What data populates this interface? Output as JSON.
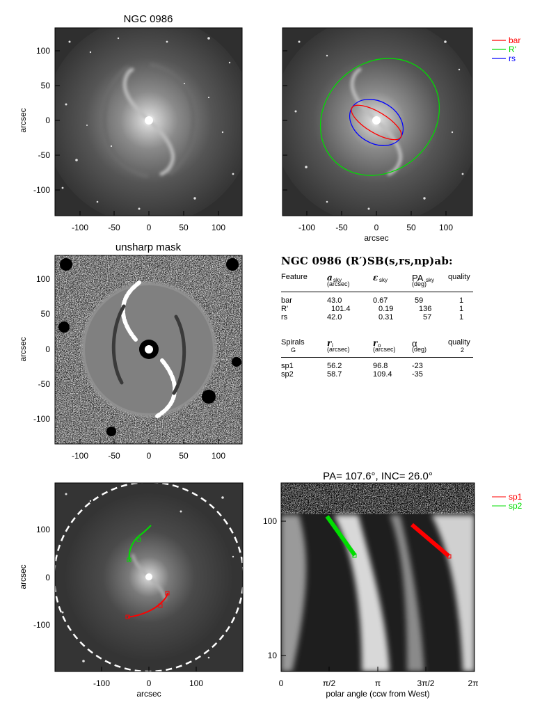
{
  "panels": {
    "p1_title": "NGC 0986",
    "p3_title": "unsharp mask",
    "p6_title": "PA= 107.6°, INC=  26.0°",
    "y_label": "arcsec",
    "x_label": "arcsec",
    "x_label_polar": "polar angle (ccw from West)",
    "ticks_150": [
      "-100",
      "-50",
      "0",
      "50",
      "100"
    ],
    "yticks_150": [
      "100",
      "50",
      "0",
      "-50",
      "-100"
    ],
    "ticks_200": [
      "-100",
      "0",
      "100"
    ],
    "yticks_200": [
      "100",
      "0",
      "-100"
    ],
    "polar_xticks": [
      "0",
      "π/2",
      "π",
      "3π/2",
      "2π"
    ],
    "polar_yticks": [
      "100",
      "10"
    ]
  },
  "legend_top": [
    {
      "label": "bar",
      "color": "#ff0000"
    },
    {
      "label": "R'",
      "color": "#00dd00"
    },
    {
      "label": "rs",
      "color": "#0000ff"
    }
  ],
  "legend_bottom": [
    {
      "label": "sp1",
      "color": "#ff0000"
    },
    {
      "label": "sp2",
      "color": "#00dd00"
    }
  ],
  "table": {
    "title": "NGC 0986  (R′)SB(s,rs,np)ab:",
    "feat_header": {
      "feature": "Feature",
      "a": "a",
      "a_sub": "sky",
      "a_unit": "(arcsec)",
      "e": "ε",
      "e_sub": "sky",
      "pa": "PA",
      "pa_sub": "sky",
      "pa_unit": "(deg)",
      "quality": "quality"
    },
    "features": [
      {
        "name": "bar",
        "a": "43.0",
        "e": "0.67",
        "pa": "59",
        "q": "1"
      },
      {
        "name": "R'",
        "a": "101.4",
        "e": "0.19",
        "pa": "136",
        "q": "1"
      },
      {
        "name": "rs",
        "a": "42.0",
        "e": "0.31",
        "pa": "57",
        "q": "1"
      }
    ],
    "spiral_header": {
      "spirals": "Spirals",
      "class": "G",
      "ri": "r",
      "ri_sub": "i",
      "ri_unit": "(arcsec)",
      "ro": "r",
      "ro_sub": "o",
      "ro_unit": "(arcsec)",
      "alpha": "α",
      "alpha_unit": "(deg)",
      "quality": "quality",
      "quality_val": "2"
    },
    "spirals": [
      {
        "name": "sp1",
        "ri": "56.2",
        "ro": "96.8",
        "alpha": "-23"
      },
      {
        "name": "sp2",
        "ri": "58.7",
        "ro": "109.4",
        "alpha": "-35"
      }
    ]
  }
}
